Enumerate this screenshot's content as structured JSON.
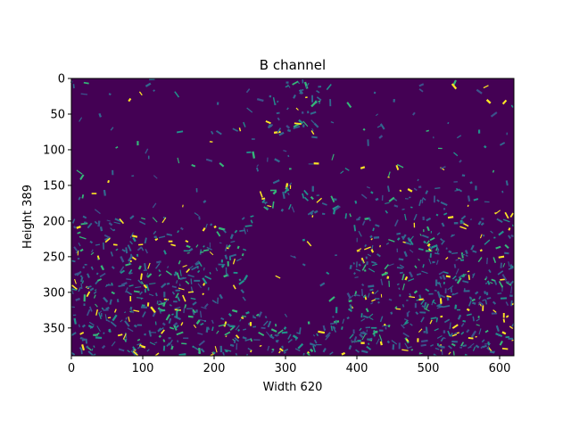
{
  "chart_data": {
    "type": "heatmap",
    "title": "B channel",
    "xlabel": "Width 620",
    "ylabel": "Height 389",
    "xlim": [
      0,
      620
    ],
    "ylim": [
      389,
      0
    ],
    "x_ticks": [
      0,
      100,
      200,
      300,
      400,
      500,
      600
    ],
    "y_ticks": [
      0,
      50,
      100,
      150,
      200,
      250,
      300,
      350
    ],
    "colormap": "viridis",
    "colors": {
      "background": "#440154",
      "low": "#31688e",
      "mid": "#35b779",
      "high": "#fde725"
    },
    "grid": false
  }
}
